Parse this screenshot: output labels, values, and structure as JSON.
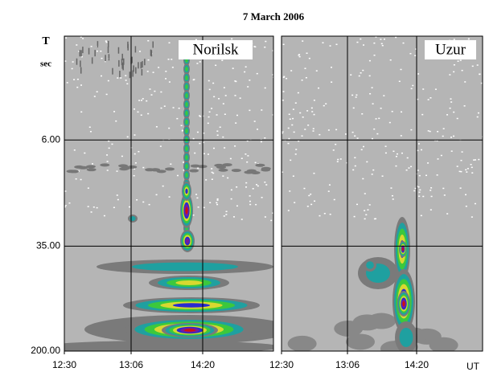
{
  "chart_data": {
    "type": "spectrogram",
    "title": "7 March 2006",
    "y_label": "T",
    "y_unit": "sec",
    "x_label": "UT",
    "log_scale": true,
    "y_inverted": true,
    "ylim": [
      1.07,
      200
    ],
    "yticks": [
      {
        "value": 6,
        "label": "6.00"
      },
      {
        "value": 35,
        "label": "35.00"
      },
      {
        "value": 200,
        "label": "200.00"
      }
    ],
    "grid": true,
    "panels": [
      {
        "name": "Norilsk",
        "xticks": [
          "12:30",
          "13:06",
          "14:20"
        ]
      },
      {
        "name": "Uzur",
        "xticks": [
          "12:30",
          "13:06",
          "14:20"
        ]
      }
    ]
  }
}
